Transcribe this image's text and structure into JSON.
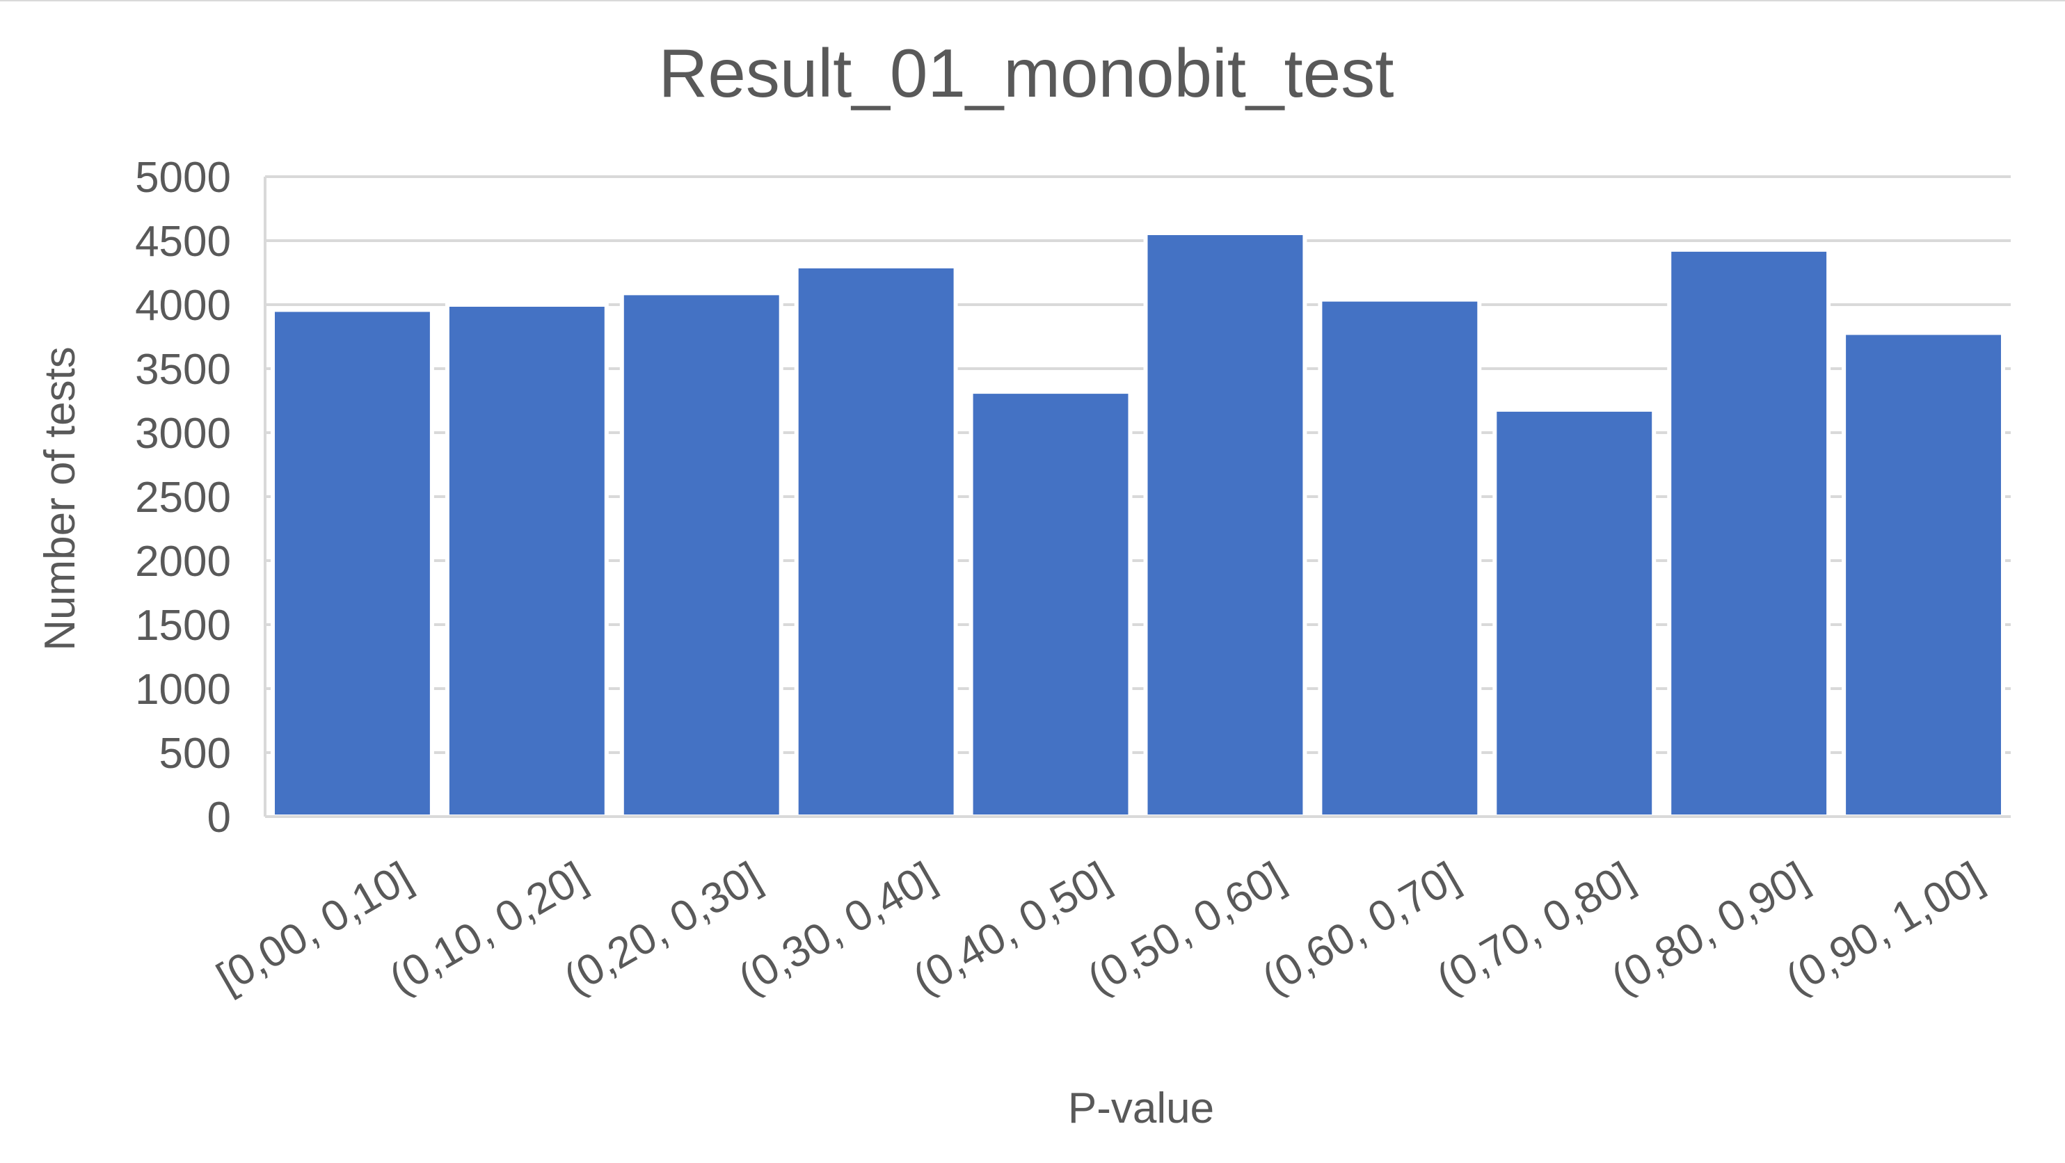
{
  "chart_data": {
    "type": "bar",
    "title": "Result_01_monobit_test",
    "xlabel": "P-value",
    "ylabel": "Number of tests",
    "categories": [
      "[0,00, 0,10]",
      "(0,10, 0,20]",
      "(0,20, 0,30]",
      "(0,30, 0,40]",
      "(0,40, 0,50]",
      "(0,50, 0,60]",
      "(0,60, 0,70]",
      "(0,70, 0,80]",
      "(0,80, 0,90]",
      "(0,90, 1,00]"
    ],
    "values": [
      3960,
      4000,
      4090,
      4300,
      3320,
      4560,
      4040,
      3180,
      4430,
      3780
    ],
    "ylim": [
      0,
      5000
    ],
    "yticks": [
      "0",
      "500",
      "1000",
      "1500",
      "2000",
      "2500",
      "3000",
      "3500",
      "4000",
      "4500",
      "5000"
    ],
    "grid": true,
    "legend": "none",
    "colors": {
      "bar": "#4472c4",
      "grid": "#d9d9d9",
      "axis": "#d9d9d9",
      "text": "#595959"
    }
  }
}
